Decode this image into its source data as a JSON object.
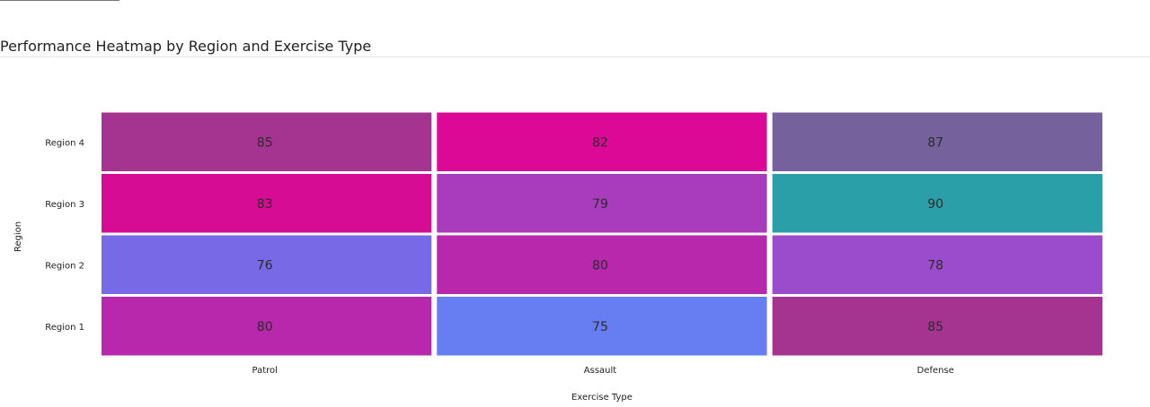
{
  "page": {
    "title": "Performance Heatmap by Region and Exercise Type"
  },
  "chart_data": {
    "type": "heatmap",
    "title": "Performance Heatmap by Region and Exercise Type",
    "xlabel": "Exercise Type",
    "ylabel": "Region",
    "x": [
      "Patrol",
      "Assault",
      "Defense"
    ],
    "y": [
      "Region 1",
      "Region 2",
      "Region 3",
      "Region 4"
    ],
    "values": [
      [
        80,
        75,
        85
      ],
      [
        76,
        80,
        78
      ],
      [
        83,
        79,
        90
      ],
      [
        85,
        82,
        87
      ]
    ],
    "cell_colors": [
      [
        "#b728ad",
        "#667ef2",
        "#a43490"
      ],
      [
        "#786ae6",
        "#b728ad",
        "#9b4ccc"
      ],
      [
        "#d60c95",
        "#a83cbc",
        "#2b9fa8"
      ],
      [
        "#a43490",
        "#dc0896",
        "#75619c"
      ]
    ],
    "grid": false,
    "legend": "none"
  }
}
